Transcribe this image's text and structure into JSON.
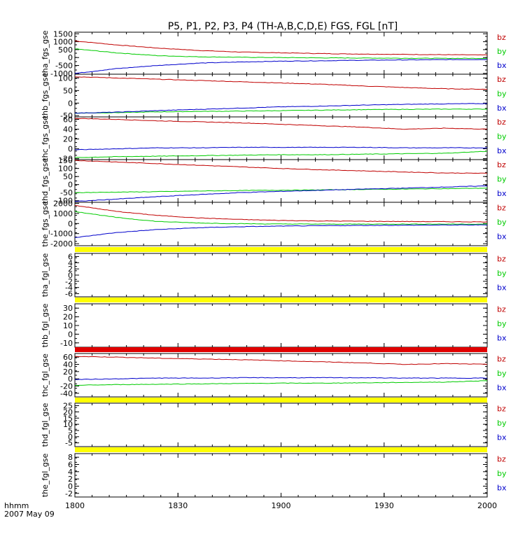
{
  "title": "P5, P1, P2, P3, P4 (TH-A,B,C,D,E) FGS, FGL [nT]",
  "x_axis": {
    "tick_labels": [
      "1800",
      "1830",
      "1900",
      "1930",
      "2000"
    ],
    "corner_label_top": "hhmm",
    "corner_label_bottom": "2007 May 09"
  },
  "colors": {
    "bz": "#c00000",
    "by": "#00cc00",
    "bx": "#0000cc",
    "bar_yellow": "#ffff00",
    "bar_red": "#e00000"
  },
  "chart_data": [
    {
      "type": "line",
      "ylabel": "tha_fgs_gse",
      "ylim": [
        -1050,
        1600
      ],
      "yticks": [
        "1500",
        "1000",
        "500",
        "0",
        "-500",
        "-1000"
      ],
      "ytick_values": [
        1500,
        1000,
        500,
        0,
        -500,
        -1000
      ],
      "x": [
        0,
        0.1,
        0.2,
        0.3,
        0.4,
        0.5,
        0.6,
        0.7,
        0.8,
        0.9,
        1.0
      ],
      "series": [
        {
          "name": "bz",
          "values": [
            1050,
            800,
            600,
            450,
            350,
            300,
            250,
            220,
            200,
            180,
            160
          ]
        },
        {
          "name": "by",
          "values": [
            550,
            300,
            120,
            50,
            20,
            0,
            -20,
            -30,
            -40,
            -50,
            -50
          ]
        },
        {
          "name": "bx",
          "values": [
            -1000,
            -700,
            -500,
            -350,
            -280,
            -230,
            -200,
            -170,
            -150,
            -130,
            -120
          ]
        }
      ]
    },
    {
      "type": "line",
      "ylabel": "thb_fgs_gse",
      "ylim": [
        -55,
        115
      ],
      "yticks": [
        "100",
        "50",
        "0",
        "-50"
      ],
      "ytick_values": [
        100,
        50,
        0,
        -50
      ],
      "x": [
        0,
        0.1,
        0.2,
        0.3,
        0.4,
        0.5,
        0.6,
        0.7,
        0.8,
        0.9,
        1.0
      ],
      "series": [
        {
          "name": "bz",
          "values": [
            105,
            100,
            95,
            90,
            85,
            80,
            75,
            68,
            62,
            57,
            55
          ]
        },
        {
          "name": "by",
          "values": [
            -40,
            -38,
            -35,
            -33,
            -32,
            -30,
            -28,
            -26,
            -25,
            -24,
            -24
          ]
        },
        {
          "name": "bx",
          "values": [
            -40,
            -36,
            -30,
            -25,
            -20,
            -15,
            -12,
            -8,
            -5,
            -3,
            -2
          ]
        }
      ]
    },
    {
      "type": "line",
      "ylabel": "thc_fgs_gse",
      "ylim": [
        -22,
        65
      ],
      "yticks": [
        "60",
        "40",
        "20",
        "0",
        "-20"
      ],
      "ytick_values": [
        60,
        40,
        20,
        0,
        -20
      ],
      "x": [
        0,
        0.1,
        0.2,
        0.3,
        0.4,
        0.5,
        0.6,
        0.7,
        0.8,
        0.9,
        1.0
      ],
      "series": [
        {
          "name": "bz",
          "values": [
            62,
            60,
            57,
            55,
            53,
            50,
            47,
            44,
            40,
            42,
            40
          ]
        },
        {
          "name": "by",
          "values": [
            -18,
            -16,
            -15,
            -14,
            -13,
            -12,
            -12,
            -11,
            -10,
            -9,
            -5
          ]
        },
        {
          "name": "bx",
          "values": [
            -2,
            0,
            2,
            2,
            3,
            3,
            3,
            3,
            2,
            2,
            2
          ]
        }
      ]
    },
    {
      "type": "line",
      "ylabel": "thd_fgs_gse",
      "ylim": [
        -110,
        155
      ],
      "yticks": [
        "150",
        "100",
        "50",
        "0",
        "-50",
        "-100"
      ],
      "ytick_values": [
        150,
        100,
        50,
        0,
        -50,
        -100
      ],
      "x": [
        0,
        0.1,
        0.2,
        0.3,
        0.4,
        0.5,
        0.6,
        0.7,
        0.8,
        0.9,
        1.0
      ],
      "series": [
        {
          "name": "bz",
          "values": [
            150,
            140,
            130,
            120,
            110,
            100,
            92,
            85,
            78,
            72,
            70
          ]
        },
        {
          "name": "by",
          "values": [
            -50,
            -47,
            -44,
            -40,
            -37,
            -35,
            -33,
            -30,
            -28,
            -25,
            -22
          ]
        },
        {
          "name": "bx",
          "values": [
            -105,
            -90,
            -75,
            -62,
            -50,
            -42,
            -35,
            -28,
            -22,
            -15,
            -8
          ]
        }
      ]
    },
    {
      "type": "line",
      "ylabel": "the_fgs_gse",
      "ylim": [
        -2200,
        2100
      ],
      "yticks": [
        "2000",
        "1000",
        "0",
        "-1000",
        "-2000"
      ],
      "ytick_values": [
        2000,
        1000,
        0,
        -1000,
        -2000
      ],
      "x": [
        0,
        0.1,
        0.2,
        0.3,
        0.4,
        0.5,
        0.6,
        0.7,
        0.8,
        0.9,
        1.0
      ],
      "series": [
        {
          "name": "bz",
          "values": [
            1800,
            1200,
            800,
            550,
            400,
            300,
            250,
            220,
            200,
            180,
            160
          ]
        },
        {
          "name": "by",
          "values": [
            1200,
            600,
            200,
            50,
            -20,
            -50,
            -60,
            -60,
            -60,
            -60,
            -60
          ]
        },
        {
          "name": "bx",
          "values": [
            -1400,
            -900,
            -600,
            -420,
            -320,
            -260,
            -220,
            -190,
            -170,
            -150,
            -140
          ]
        }
      ]
    },
    {
      "type": "line",
      "ylabel": "tha_fgl_gse",
      "ylim": [
        -7,
        7
      ],
      "yticks": [
        "6",
        "4",
        "2",
        "0",
        "-2",
        "-4",
        "-6"
      ],
      "ytick_values": [
        6,
        4,
        2,
        0,
        -2,
        -4,
        -6
      ],
      "top_bar": "yellow",
      "series": []
    },
    {
      "type": "line",
      "ylabel": "thb_fgl_gse",
      "ylim": [
        -15,
        35
      ],
      "yticks": [
        "30",
        "20",
        "10",
        "0",
        "-10"
      ],
      "ytick_values": [
        30,
        20,
        10,
        0,
        -10
      ],
      "top_bar": "yellow",
      "series": []
    },
    {
      "type": "line",
      "ylabel": "thc_fgl_gse",
      "ylim": [
        -50,
        70
      ],
      "yticks": [
        "60",
        "40",
        "20",
        "0",
        "-20",
        "-40"
      ],
      "ytick_values": [
        60,
        40,
        20,
        0,
        -20,
        -40
      ],
      "top_bar": "red",
      "x": [
        0,
        0.1,
        0.2,
        0.3,
        0.4,
        0.5,
        0.6,
        0.7,
        0.8,
        0.9,
        1.0
      ],
      "series": [
        {
          "name": "bz",
          "values": [
            62,
            60,
            57,
            55,
            53,
            50,
            47,
            44,
            40,
            42,
            40
          ]
        },
        {
          "name": "by",
          "values": [
            -18,
            -16,
            -15,
            -14,
            -13,
            -12,
            -12,
            -11,
            -10,
            -9,
            -5
          ]
        },
        {
          "name": "bx",
          "values": [
            -2,
            0,
            2,
            2,
            3,
            3,
            3,
            3,
            2,
            2,
            2
          ]
        }
      ]
    },
    {
      "type": "line",
      "ylabel": "thd_fgl_gse",
      "ylim": [
        -8,
        27
      ],
      "yticks": [
        "25",
        "20",
        "15",
        "10",
        "5",
        "0",
        "-5"
      ],
      "ytick_values": [
        25,
        20,
        15,
        10,
        5,
        0,
        -5
      ],
      "top_bar": "yellow",
      "series": []
    },
    {
      "type": "line",
      "ylabel": "the_fgl_gse",
      "ylim": [
        -3,
        9
      ],
      "yticks": [
        "8",
        "6",
        "4",
        "2",
        "0",
        "-2"
      ],
      "ytick_values": [
        8,
        6,
        4,
        2,
        0,
        -2
      ],
      "top_bar": "yellow",
      "series": []
    }
  ],
  "legend_labels": [
    "bz",
    "by",
    "bx"
  ]
}
